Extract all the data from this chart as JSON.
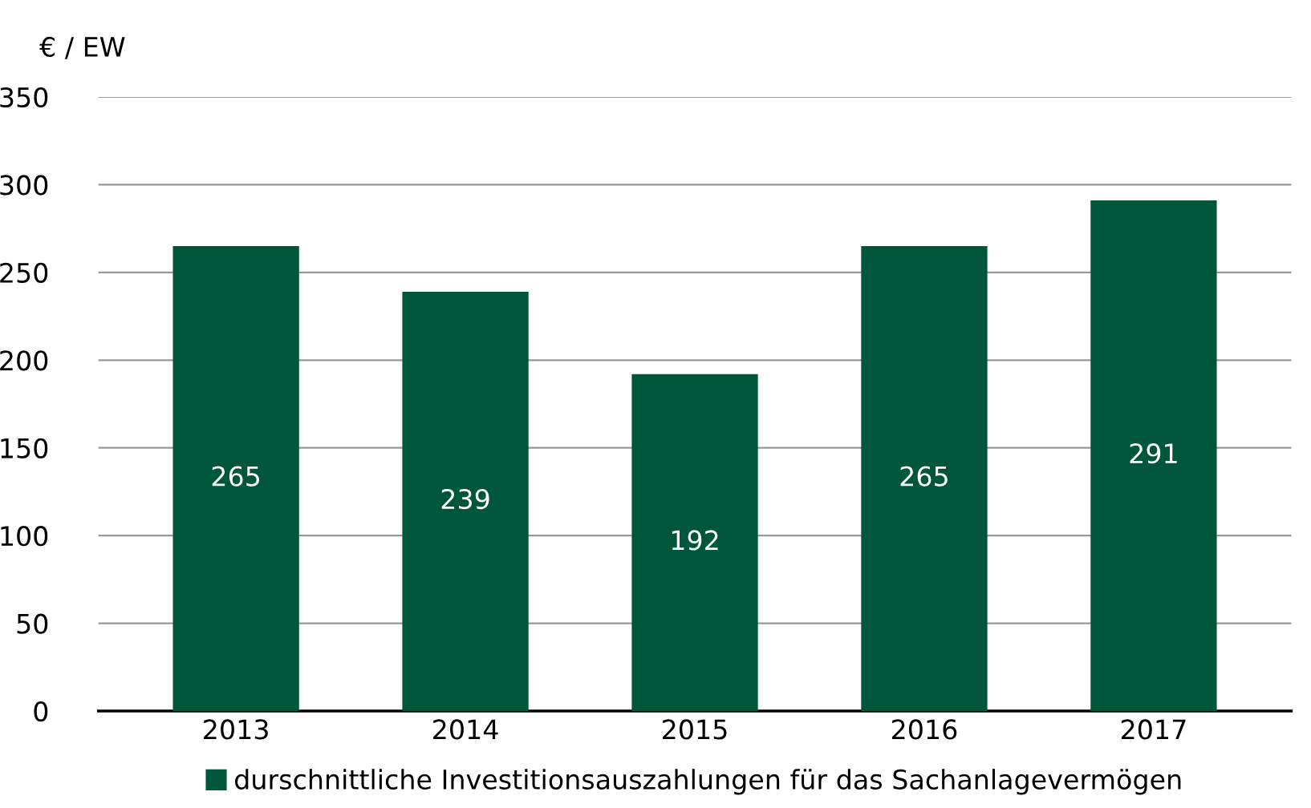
{
  "chart_data": {
    "type": "bar",
    "ylabel": "€ / EW",
    "categories": [
      "2013",
      "2014",
      "2015",
      "2016",
      "2017"
    ],
    "series": [
      {
        "name": "durschnittliche Investitionsauszahlungen für das Sachanlagevermögen",
        "color": "#00563a",
        "values": [
          265,
          239,
          192,
          265,
          291
        ]
      }
    ],
    "ylim": [
      0,
      350
    ],
    "yticks": [
      0,
      50,
      100,
      150,
      200,
      250,
      300,
      350
    ],
    "grid": "y",
    "legend": "bottom",
    "data_labels": true
  }
}
